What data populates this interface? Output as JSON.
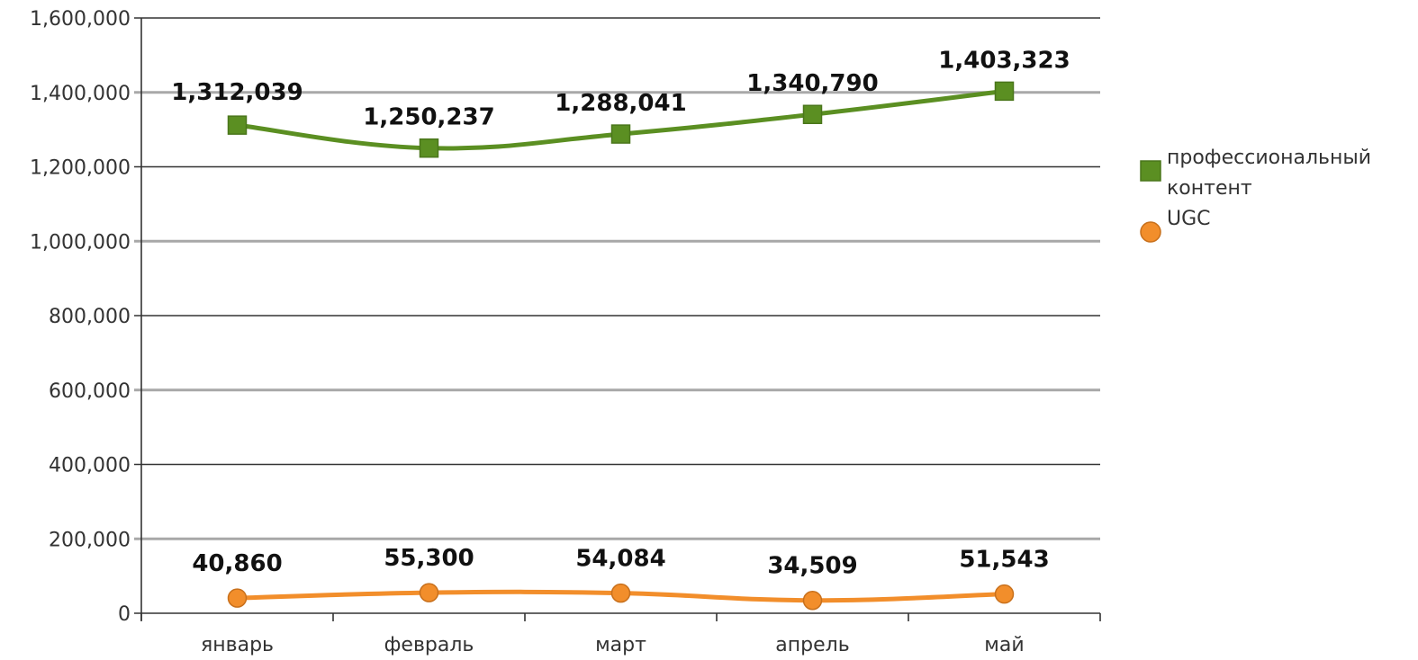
{
  "chart_data": {
    "type": "line",
    "title": "",
    "xlabel": "",
    "ylabel": "",
    "categories": [
      "январь",
      "февраль",
      "март",
      "апрель",
      "май"
    ],
    "ylim": [
      0,
      1600000
    ],
    "yticks": [
      0,
      200000,
      400000,
      600000,
      800000,
      1000000,
      1200000,
      1400000,
      1600000
    ],
    "ytick_labels": [
      "0",
      "200,000",
      "400,000",
      "600,000",
      "800,000",
      "1,000,000",
      "1,200,000",
      "1,400,000",
      "1,600,000"
    ],
    "grid": true,
    "legend_position": "right",
    "series": [
      {
        "name": "профессиональный контент",
        "legend_lines": [
          "профессиональный",
          "контент"
        ],
        "marker": "square",
        "color": "#5b8f22",
        "values": [
          1312039,
          1250237,
          1288041,
          1340790,
          1403323
        ],
        "labels": [
          "1,312,039",
          "1,250,237",
          "1,288,041",
          "1,340,790",
          "1,403,323"
        ]
      },
      {
        "name": "UGC",
        "legend_lines": [
          "UGC"
        ],
        "marker": "circle",
        "color": "#f28e2b",
        "values": [
          40860,
          55300,
          54084,
          34509,
          51543
        ],
        "labels": [
          "40,860",
          "55,300",
          "54,084",
          "34,509",
          "51,543"
        ]
      }
    ]
  }
}
